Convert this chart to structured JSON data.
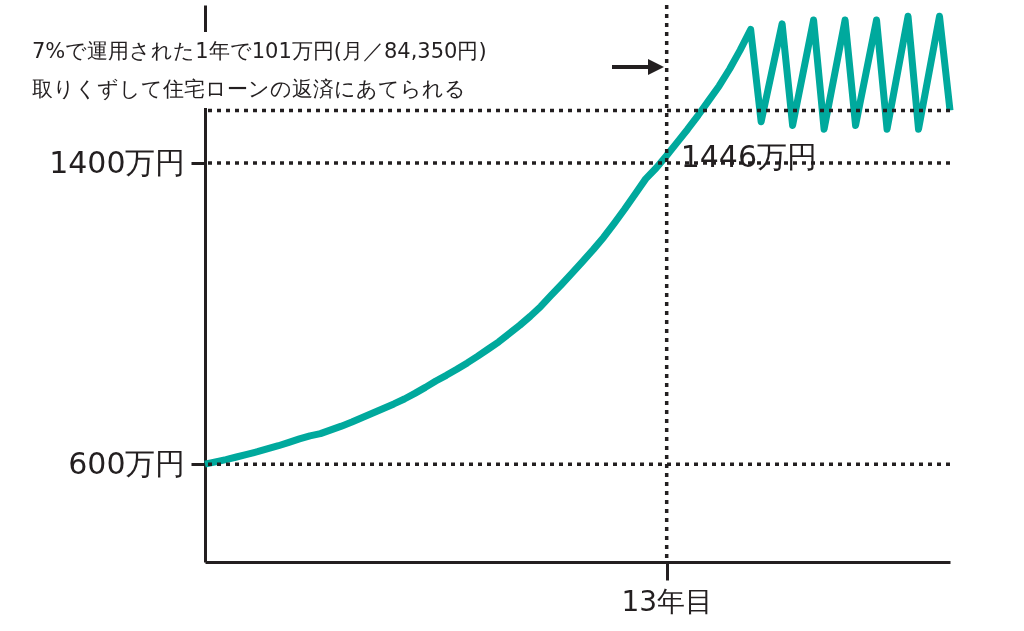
{
  "chart_data": {
    "type": "line",
    "categories": [
      null,
      null,
      null,
      null,
      null,
      null,
      null,
      null,
      null,
      null,
      null,
      null,
      null,
      null,
      null,
      null,
      null,
      null,
      null,
      null,
      null,
      null,
      null,
      null,
      null,
      null,
      null,
      null,
      null,
      null,
      null,
      null,
      null,
      null,
      null,
      null,
      null,
      null,
      null,
      null,
      null,
      null,
      null,
      null,
      "13年目",
      null,
      null,
      null,
      null,
      null,
      null,
      null,
      null,
      null,
      null,
      null,
      null,
      null,
      null,
      null,
      null,
      null,
      null,
      null,
      null,
      null,
      null,
      null,
      null,
      null,
      null,
      null
    ],
    "series": [
      {
        "color": "#00a99d",
        "values": [
          600,
          606,
          612,
          619,
          626,
          633,
          641,
          649,
          658,
          667,
          675,
          681,
          691,
          701,
          712,
          724,
          736,
          748,
          760,
          773,
          788,
          804,
          821,
          836,
          852,
          869,
          887,
          906,
          925,
          947,
          969,
          993,
          1019,
          1049,
          1078,
          1108,
          1139,
          1170,
          1203,
          1240,
          1278,
          1318,
          1358,
          1387,
          1420,
          1455,
          1490,
          1527,
          1566,
          1605,
          1650,
          1700,
          1755,
          1510,
          1640,
          1770,
          1500,
          1640,
          1780,
          1490,
          1635,
          1780,
          1500,
          1640,
          1780,
          1490,
          1640,
          1790,
          1490,
          1640,
          1790,
          1540
        ]
      }
    ],
    "ylim": [
      340,
      1820
    ],
    "yticks": [
      {
        "value": 600,
        "label": "600万円"
      },
      {
        "value": 1400,
        "label": "1400万円"
      }
    ],
    "ref_lines": [
      {
        "axis": "y",
        "value": 600,
        "line_style": "dotted"
      },
      {
        "axis": "y",
        "value": 1400,
        "line_style": "dotted"
      },
      {
        "axis": "y",
        "value": 1540,
        "line_style": "dotted"
      },
      {
        "axis": "x",
        "value": "13年目",
        "line_style": "dotted"
      }
    ],
    "annotations": [
      "7%で運用された1年で101万円(月／84,350円)\n取りくずして住宅ローンの返済にあてられる",
      {
        "text": "1446万円",
        "x": "13年目"
      }
    ],
    "marker": "none",
    "line_style": "solid"
  }
}
